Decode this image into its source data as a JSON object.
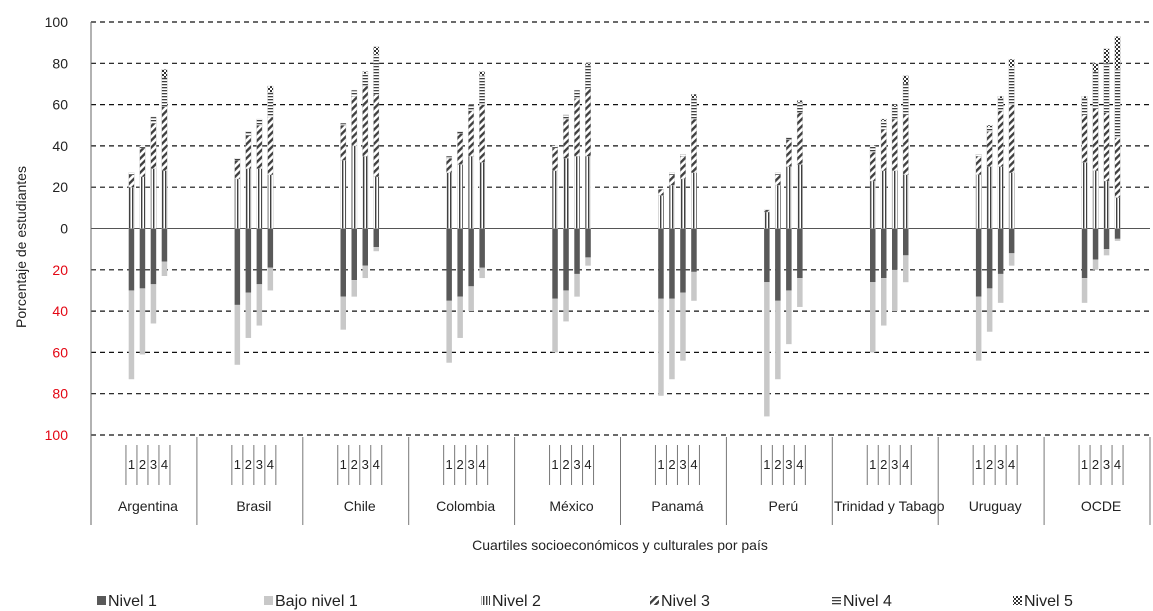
{
  "colors": {
    "nivel1": "#595959",
    "bajo_nivel1": "#c8c8c8",
    "pattern_dark": "#404040",
    "negative_ticks": "#e30613"
  },
  "chart_data": {
    "type": "bar",
    "subtype": "diverging stacked bar",
    "xlabel": "Cuartiles socioeconómicos y culturales por país",
    "ylabel": "Porcentaje de estudiantes",
    "ylim": [
      -100,
      100
    ],
    "grid": true,
    "legend_position": "bottom",
    "y_ticks": [
      {
        "value": 100,
        "label": "100",
        "negative": false
      },
      {
        "value": 80,
        "label": "80",
        "negative": false
      },
      {
        "value": 60,
        "label": "60",
        "negative": false
      },
      {
        "value": 40,
        "label": "40",
        "negative": false
      },
      {
        "value": 20,
        "label": "20",
        "negative": false
      },
      {
        "value": 0,
        "label": "0",
        "negative": false
      },
      {
        "value": -20,
        "label": "20",
        "negative": true
      },
      {
        "value": -40,
        "label": "40",
        "negative": true
      },
      {
        "value": -60,
        "label": "60",
        "negative": true
      },
      {
        "value": -80,
        "label": "80",
        "negative": true
      },
      {
        "value": -100,
        "label": "100",
        "negative": true
      }
    ],
    "quartile_labels": [
      "1",
      "2",
      "3",
      "4"
    ],
    "legend": [
      {
        "key": "nivel1",
        "label": "Nivel 1",
        "pattern": "solid-dark"
      },
      {
        "key": "bajo_nivel1",
        "label": "Bajo nivel 1",
        "pattern": "solid-light"
      },
      {
        "key": "nivel2",
        "label": "Nivel 2",
        "pattern": "vertical-lines"
      },
      {
        "key": "nivel3",
        "label": "Nivel 3",
        "pattern": "diagonal"
      },
      {
        "key": "nivel4",
        "label": "Nivel 4",
        "pattern": "horizontal-lines"
      },
      {
        "key": "nivel5",
        "label": "Nivel 5",
        "pattern": "checker"
      }
    ],
    "countries": [
      {
        "name": "Argentina",
        "quartiles": [
          {
            "nivel1": 30,
            "bajo_nivel1": 43,
            "nivel2": 20,
            "nivel3": 6,
            "nivel4": 1,
            "nivel5": 0
          },
          {
            "nivel1": 29,
            "bajo_nivel1": 32,
            "nivel2": 25,
            "nivel3": 14,
            "nivel4": 1,
            "nivel5": 0
          },
          {
            "nivel1": 27,
            "bajo_nivel1": 19,
            "nivel2": 29,
            "nivel3": 22,
            "nivel4": 3,
            "nivel5": 0
          },
          {
            "nivel1": 16,
            "bajo_nivel1": 7,
            "nivel2": 28,
            "nivel3": 31,
            "nivel4": 14,
            "nivel5": 4
          }
        ]
      },
      {
        "name": "Brasil",
        "quartiles": [
          {
            "nivel1": 37,
            "bajo_nivel1": 29,
            "nivel2": 24,
            "nivel3": 9,
            "nivel4": 1,
            "nivel5": 0
          },
          {
            "nivel1": 31,
            "bajo_nivel1": 22,
            "nivel2": 29,
            "nivel3": 16,
            "nivel4": 2,
            "nivel5": 0
          },
          {
            "nivel1": 27,
            "bajo_nivel1": 20,
            "nivel2": 29,
            "nivel3": 21,
            "nivel4": 3,
            "nivel5": 0
          },
          {
            "nivel1": 19,
            "bajo_nivel1": 11,
            "nivel2": 26,
            "nivel3": 28,
            "nivel4": 12,
            "nivel5": 3
          }
        ]
      },
      {
        "name": "Chile",
        "quartiles": [
          {
            "nivel1": 33,
            "bajo_nivel1": 16,
            "nivel2": 33,
            "nivel3": 17,
            "nivel4": 1,
            "nivel5": 0
          },
          {
            "nivel1": 25,
            "bajo_nivel1": 8,
            "nivel2": 40,
            "nivel3": 24,
            "nivel4": 3,
            "nivel5": 0
          },
          {
            "nivel1": 18,
            "bajo_nivel1": 6,
            "nivel2": 35,
            "nivel3": 34,
            "nivel4": 6,
            "nivel5": 1
          },
          {
            "nivel1": 9,
            "bajo_nivel1": 2,
            "nivel2": 25,
            "nivel3": 40,
            "nivel4": 19,
            "nivel5": 4
          }
        ]
      },
      {
        "name": "Colombia",
        "quartiles": [
          {
            "nivel1": 35,
            "bajo_nivel1": 30,
            "nivel2": 27,
            "nivel3": 7,
            "nivel4": 1,
            "nivel5": 0
          },
          {
            "nivel1": 33,
            "bajo_nivel1": 20,
            "nivel2": 31,
            "nivel3": 15,
            "nivel4": 1,
            "nivel5": 0
          },
          {
            "nivel1": 28,
            "bajo_nivel1": 12,
            "nivel2": 35,
            "nivel3": 22,
            "nivel4": 3,
            "nivel5": 0
          },
          {
            "nivel1": 19,
            "bajo_nivel1": 5,
            "nivel2": 32,
            "nivel3": 28,
            "nivel4": 14,
            "nivel5": 2
          }
        ]
      },
      {
        "name": "México",
        "quartiles": [
          {
            "nivel1": 34,
            "bajo_nivel1": 26,
            "nivel2": 28,
            "nivel3": 11,
            "nivel4": 1,
            "nivel5": 0
          },
          {
            "nivel1": 30,
            "bajo_nivel1": 15,
            "nivel2": 34,
            "nivel3": 19,
            "nivel4": 2,
            "nivel5": 0
          },
          {
            "nivel1": 22,
            "bajo_nivel1": 11,
            "nivel2": 35,
            "nivel3": 28,
            "nivel4": 4,
            "nivel5": 0
          },
          {
            "nivel1": 14,
            "bajo_nivel1": 4,
            "nivel2": 35,
            "nivel3": 33,
            "nivel4": 11,
            "nivel5": 1
          }
        ]
      },
      {
        "name": "Panamá",
        "quartiles": [
          {
            "nivel1": 34,
            "bajo_nivel1": 47,
            "nivel2": 16,
            "nivel3": 3,
            "nivel4": 0,
            "nivel5": 0
          },
          {
            "nivel1": 34,
            "bajo_nivel1": 39,
            "nivel2": 21,
            "nivel3": 5,
            "nivel4": 1,
            "nivel5": 0
          },
          {
            "nivel1": 31,
            "bajo_nivel1": 33,
            "nivel2": 24,
            "nivel3": 11,
            "nivel4": 1,
            "nivel5": 0
          },
          {
            "nivel1": 21,
            "bajo_nivel1": 14,
            "nivel2": 27,
            "nivel3": 26,
            "nivel4": 10,
            "nivel5": 2
          }
        ]
      },
      {
        "name": "Perú",
        "quartiles": [
          {
            "nivel1": 26,
            "bajo_nivel1": 65,
            "nivel2": 8,
            "nivel3": 1,
            "nivel4": 0,
            "nivel5": 0
          },
          {
            "nivel1": 35,
            "bajo_nivel1": 38,
            "nivel2": 21,
            "nivel3": 5,
            "nivel4": 1,
            "nivel5": 0
          },
          {
            "nivel1": 30,
            "bajo_nivel1": 26,
            "nivel2": 30,
            "nivel3": 13,
            "nivel4": 1,
            "nivel5": 0
          },
          {
            "nivel1": 24,
            "bajo_nivel1": 14,
            "nivel2": 31,
            "nivel3": 25,
            "nivel4": 5,
            "nivel5": 1
          }
        ]
      },
      {
        "name": "Trinidad y Tabago",
        "quartiles": [
          {
            "nivel1": 26,
            "bajo_nivel1": 34,
            "nivel2": 23,
            "nivel3": 14,
            "nivel4": 3,
            "nivel5": 0
          },
          {
            "nivel1": 24,
            "bajo_nivel1": 23,
            "nivel2": 28,
            "nivel3": 20,
            "nivel4": 4,
            "nivel5": 1
          },
          {
            "nivel1": 20,
            "bajo_nivel1": 20,
            "nivel2": 28,
            "nivel3": 25,
            "nivel4": 6,
            "nivel5": 1
          },
          {
            "nivel1": 13,
            "bajo_nivel1": 13,
            "nivel2": 26,
            "nivel3": 29,
            "nivel4": 15,
            "nivel5": 4
          }
        ]
      },
      {
        "name": "Uruguay",
        "quartiles": [
          {
            "nivel1": 33,
            "bajo_nivel1": 31,
            "nivel2": 26,
            "nivel3": 9,
            "nivel4": 1,
            "nivel5": 0
          },
          {
            "nivel1": 29,
            "bajo_nivel1": 21,
            "nivel2": 30,
            "nivel3": 17,
            "nivel4": 2,
            "nivel5": 1
          },
          {
            "nivel1": 22,
            "bajo_nivel1": 14,
            "nivel2": 30,
            "nivel3": 27,
            "nivel4": 6,
            "nivel5": 1
          },
          {
            "nivel1": 12,
            "bajo_nivel1": 6,
            "nivel2": 27,
            "nivel3": 33,
            "nivel4": 18,
            "nivel5": 4
          }
        ]
      },
      {
        "name": "OCDE",
        "quartiles": [
          {
            "nivel1": 24,
            "bajo_nivel1": 12,
            "nivel2": 32,
            "nivel3": 23,
            "nivel4": 8,
            "nivel5": 1
          },
          {
            "nivel1": 15,
            "bajo_nivel1": 5,
            "nivel2": 28,
            "nivel3": 30,
            "nivel4": 18,
            "nivel5": 4
          },
          {
            "nivel1": 10,
            "bajo_nivel1": 3,
            "nivel2": 23,
            "nivel3": 33,
            "nivel4": 24,
            "nivel5": 7
          },
          {
            "nivel1": 5,
            "bajo_nivel1": 1,
            "nivel2": 15,
            "nivel3": 29,
            "nivel4": 33,
            "nivel5": 16
          }
        ]
      }
    ]
  }
}
